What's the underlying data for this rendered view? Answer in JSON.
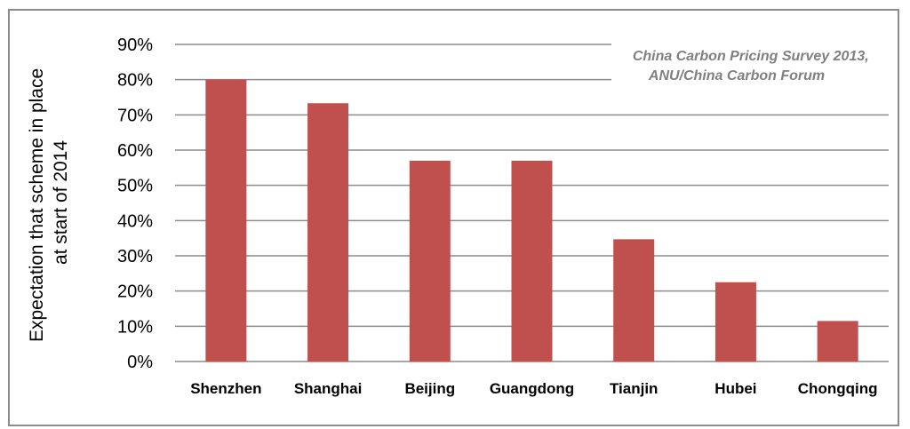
{
  "chart_data": {
    "type": "bar",
    "categories": [
      "Shenzhen",
      "Shanghai",
      "Beijing",
      "Guangdong",
      "Tianjin",
      "Hubei",
      "Chongqing"
    ],
    "values": [
      80,
      73.3,
      57,
      57,
      34.7,
      22.5,
      11.5
    ],
    "ylabel_lines": [
      "Expectation that scheme in place",
      "at start of 2014"
    ],
    "yticks": [
      "0%",
      "10%",
      "20%",
      "30%",
      "40%",
      "50%",
      "60%",
      "70%",
      "80%",
      "90%"
    ],
    "ylim": [
      0,
      90
    ],
    "grid": true,
    "annotation_lines": [
      "China Carbon Pricing Survey 2013,",
      "ANU/China Carbon Forum"
    ],
    "bar_color": "#c0504d",
    "grid_color": "#8c8c8c"
  }
}
